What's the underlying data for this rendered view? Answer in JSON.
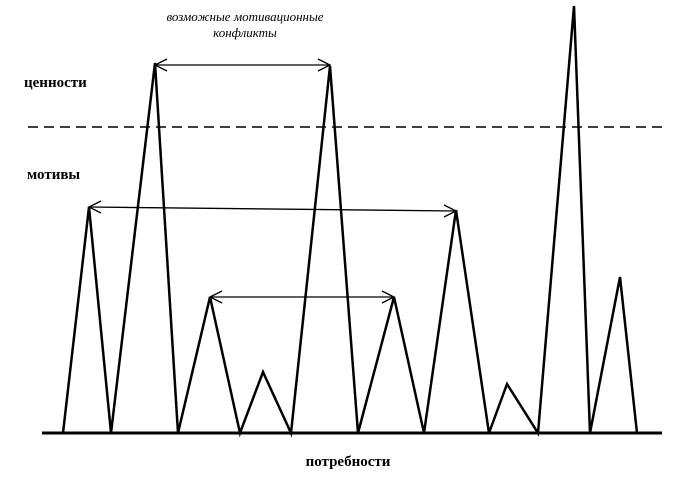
{
  "annotation": [
    "возможные мотивационные",
    "конфликты"
  ],
  "levels": {
    "values": "ценности",
    "motives": "мотивы"
  },
  "axis_label": "потребности"
}
